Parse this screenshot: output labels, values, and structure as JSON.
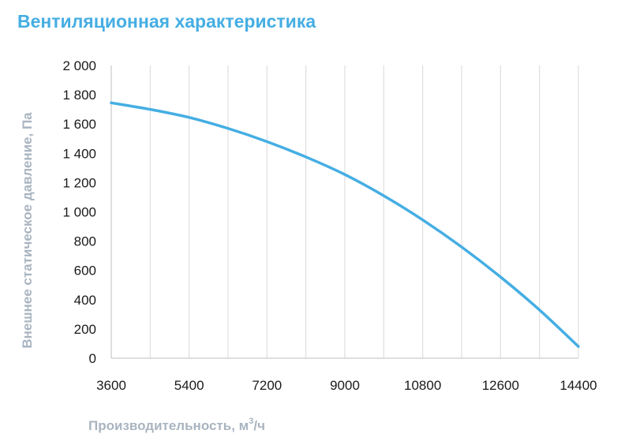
{
  "chart_data": {
    "type": "line",
    "title": "Вентиляционная характеристика",
    "xlabel": "Производительность, м",
    "xlabel_sup": "3",
    "xlabel_suffix": "/ч",
    "ylabel": "Внешнее статическое давление, Па",
    "xlim": [
      3600,
      14400
    ],
    "ylim": [
      0,
      2000
    ],
    "x_ticks": [
      3600,
      5400,
      7200,
      9000,
      10800,
      12600,
      14400
    ],
    "x_tick_labels": [
      "3600",
      "5400",
      "7200",
      "9000",
      "10800",
      "12600",
      "14400"
    ],
    "y_ticks": [
      0,
      200,
      400,
      600,
      800,
      1000,
      1200,
      1400,
      1600,
      1800,
      2000
    ],
    "y_tick_labels": [
      "0",
      "200",
      "400",
      "600",
      "800",
      "1 000",
      "1 200",
      "1 400",
      "1 600",
      "1 800",
      "2 000"
    ],
    "grid": "vertical",
    "color": "#45aee3",
    "series": [
      {
        "x": [
          3600,
          4500,
          5400,
          6300,
          7200,
          8100,
          9000,
          9900,
          10800,
          11700,
          12600,
          13500,
          14400
        ],
        "values": [
          1745,
          1700,
          1645,
          1570,
          1480,
          1375,
          1255,
          1110,
          945,
          760,
          555,
          330,
          80
        ]
      }
    ]
  }
}
